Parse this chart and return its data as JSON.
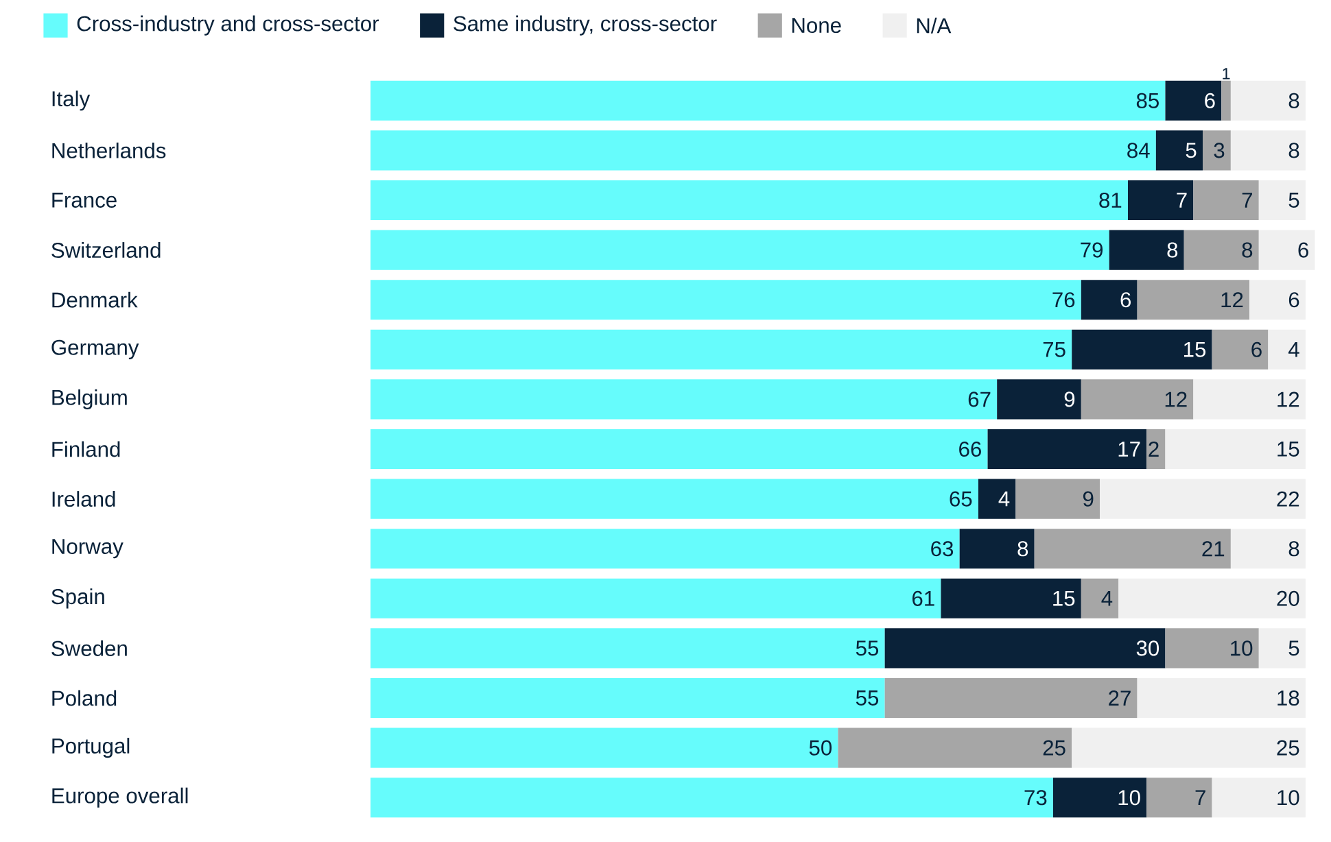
{
  "chart_data": {
    "type": "bar",
    "orientation": "horizontal",
    "stacked": true,
    "data_labels": true,
    "legend": "top",
    "tick_labels": "y",
    "xlim": [
      0,
      101
    ],
    "categories": [
      "Italy",
      "Netherlands",
      "France",
      "Switzerland",
      "Denmark",
      "Germany",
      "Belgium",
      "Finland",
      "Ireland",
      "Norway",
      "Spain",
      "Sweden",
      "Poland",
      "Portugal",
      "Europe overall"
    ],
    "series": [
      {
        "name": "Cross-industry and cross-sector",
        "color": "#66fcfc",
        "values": [
          85,
          84,
          81,
          79,
          76,
          75,
          67,
          66,
          65,
          63,
          61,
          55,
          55,
          50,
          73
        ]
      },
      {
        "name": "Same industry, cross-sector",
        "color": "#0a2239",
        "values": [
          6,
          5,
          7,
          8,
          6,
          15,
          9,
          17,
          4,
          8,
          15,
          30,
          null,
          null,
          10
        ]
      },
      {
        "name": "None",
        "color": "#a6a6a6",
        "values": [
          1,
          3,
          7,
          8,
          12,
          6,
          12,
          2,
          9,
          21,
          4,
          10,
          27,
          25,
          7
        ]
      },
      {
        "name": "N/A",
        "color": "#f0f0f0",
        "values": [
          8,
          8,
          5,
          6,
          6,
          4,
          12,
          15,
          22,
          8,
          20,
          5,
          18,
          25,
          10
        ]
      }
    ]
  }
}
